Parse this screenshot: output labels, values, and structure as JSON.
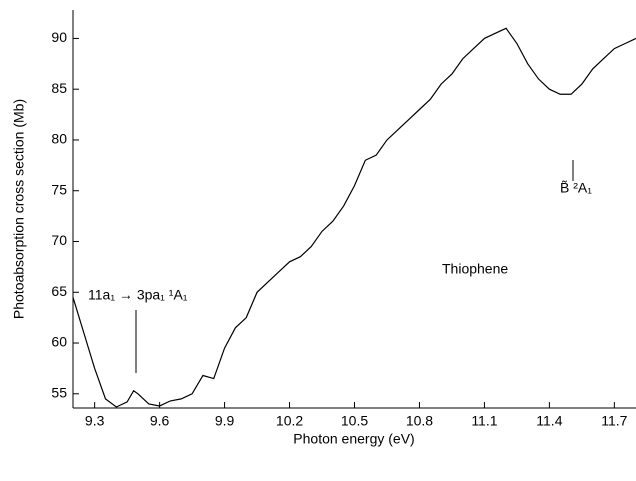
{
  "chart_data": {
    "type": "line",
    "xlabel": "Photon energy (eV)",
    "ylabel": "Photoabsorption cross section (Mb)",
    "annotations": [
      "11a₁ → 3pa₁ ¹A₁",
      "B̃ ²A₁",
      "Thiophene"
    ],
    "x": [
      9.2,
      9.25,
      9.3,
      9.35,
      9.4,
      9.45,
      9.48,
      9.5,
      9.55,
      9.6,
      9.65,
      9.7,
      9.75,
      9.8,
      9.85,
      9.9,
      9.95,
      10.0,
      10.05,
      10.1,
      10.15,
      10.2,
      10.25,
      10.3,
      10.35,
      10.4,
      10.45,
      10.5,
      10.55,
      10.6,
      10.65,
      10.7,
      10.75,
      10.8,
      10.85,
      10.9,
      10.95,
      11.0,
      11.05,
      11.1,
      11.15,
      11.2,
      11.25,
      11.3,
      11.35,
      11.4,
      11.45,
      11.5,
      11.55,
      11.6,
      11.65,
      11.7,
      11.75,
      11.8
    ],
    "series": [
      {
        "name": "Thiophene",
        "color": "#000000",
        "values": [
          64.5,
          61,
          57.5,
          54.5,
          53.7,
          54.2,
          55.3,
          55,
          54,
          53.8,
          54.3,
          54.5,
          55,
          56.8,
          56.5,
          59.5,
          61.5,
          62.5,
          65,
          66,
          67,
          68,
          68.5,
          69.5,
          71,
          72,
          73.5,
          75.5,
          78,
          78.5,
          80,
          81,
          82,
          83,
          84,
          85.5,
          86.5,
          88,
          89,
          90,
          90.5,
          91,
          89.5,
          87.5,
          86,
          85,
          84.5,
          84.5,
          85.5,
          87,
          88,
          89,
          89.5,
          90
        ]
      }
    ],
    "xlim": [
      9.2,
      11.8
    ],
    "ylim": [
      53.6,
      92.8
    ],
    "xticks": [
      9.3,
      9.6,
      9.9,
      10.2,
      10.5,
      10.8,
      11.1,
      11.4,
      11.7
    ],
    "yticks": [
      55,
      60,
      65,
      70,
      75,
      80,
      85,
      90
    ],
    "grid": false
  }
}
